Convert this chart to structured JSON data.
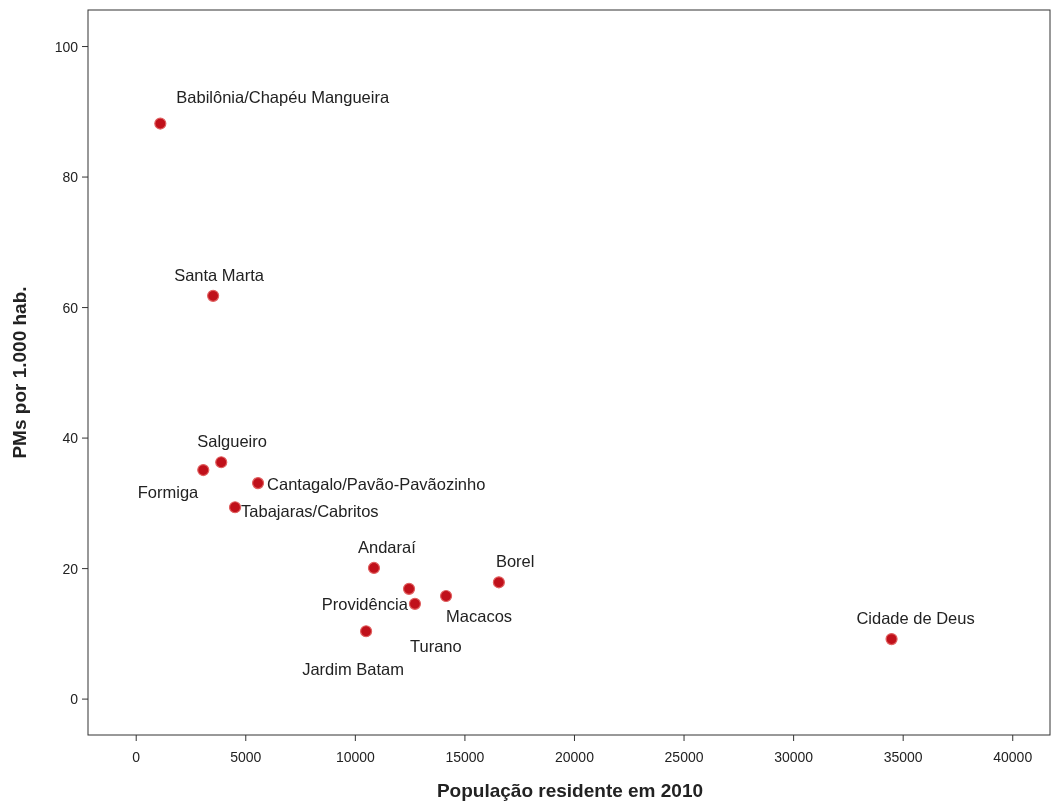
{
  "chart_data": {
    "type": "scatter",
    "xlabel": "População residente em 2010",
    "ylabel": "PMs por 1.000 hab.",
    "xlim": [
      -2200,
      41700
    ],
    "ylim": [
      -5.5,
      105.6
    ],
    "xticks": [
      0,
      5000,
      10000,
      15000,
      20000,
      25000,
      30000,
      35000,
      40000
    ],
    "yticks": [
      0,
      20,
      40,
      60,
      80,
      100
    ],
    "marker": "circle",
    "series": [
      {
        "color": "#c0101a",
        "x": [
          1100,
          3510,
          3880,
          3060,
          5560,
          4510,
          10850,
          16550,
          12720,
          12450,
          14140,
          10490,
          34470
        ],
        "values": [
          88.2,
          61.8,
          36.3,
          35.1,
          33.1,
          29.4,
          20.1,
          17.9,
          14.6,
          16.9,
          15.8,
          10.4,
          9.2
        ]
      }
    ],
    "annotations": [
      {
        "text": "Babilônia/Chapéu Mangueira",
        "x": 1100,
        "y": 88.2
      },
      {
        "text": "Santa Marta",
        "x": 3510,
        "y": 61.8
      },
      {
        "text": "Salgueiro",
        "x": 3880,
        "y": 36.3
      },
      {
        "text": "Formiga",
        "x": 3060,
        "y": 35.1
      },
      {
        "text": "Cantagalo/Pavão-Pavãozinho",
        "x": 5560,
        "y": 33.1
      },
      {
        "text": "Tabajaras/Cabritos",
        "x": 4510,
        "y": 29.4
      },
      {
        "text": "Andaraí",
        "x": 10850,
        "y": 20.1
      },
      {
        "text": "Borel",
        "x": 16550,
        "y": 17.9
      },
      {
        "text": "Providência",
        "x": 12720,
        "y": 14.6
      },
      {
        "text": "Turano",
        "x": 12450,
        "y": 16.9
      },
      {
        "text": "Macacos",
        "x": 14140,
        "y": 15.8
      },
      {
        "text": "Jardim Batam",
        "x": 10490,
        "y": 10.4
      },
      {
        "text": "Cidade de Deus",
        "x": 34470,
        "y": 9.2
      }
    ]
  }
}
